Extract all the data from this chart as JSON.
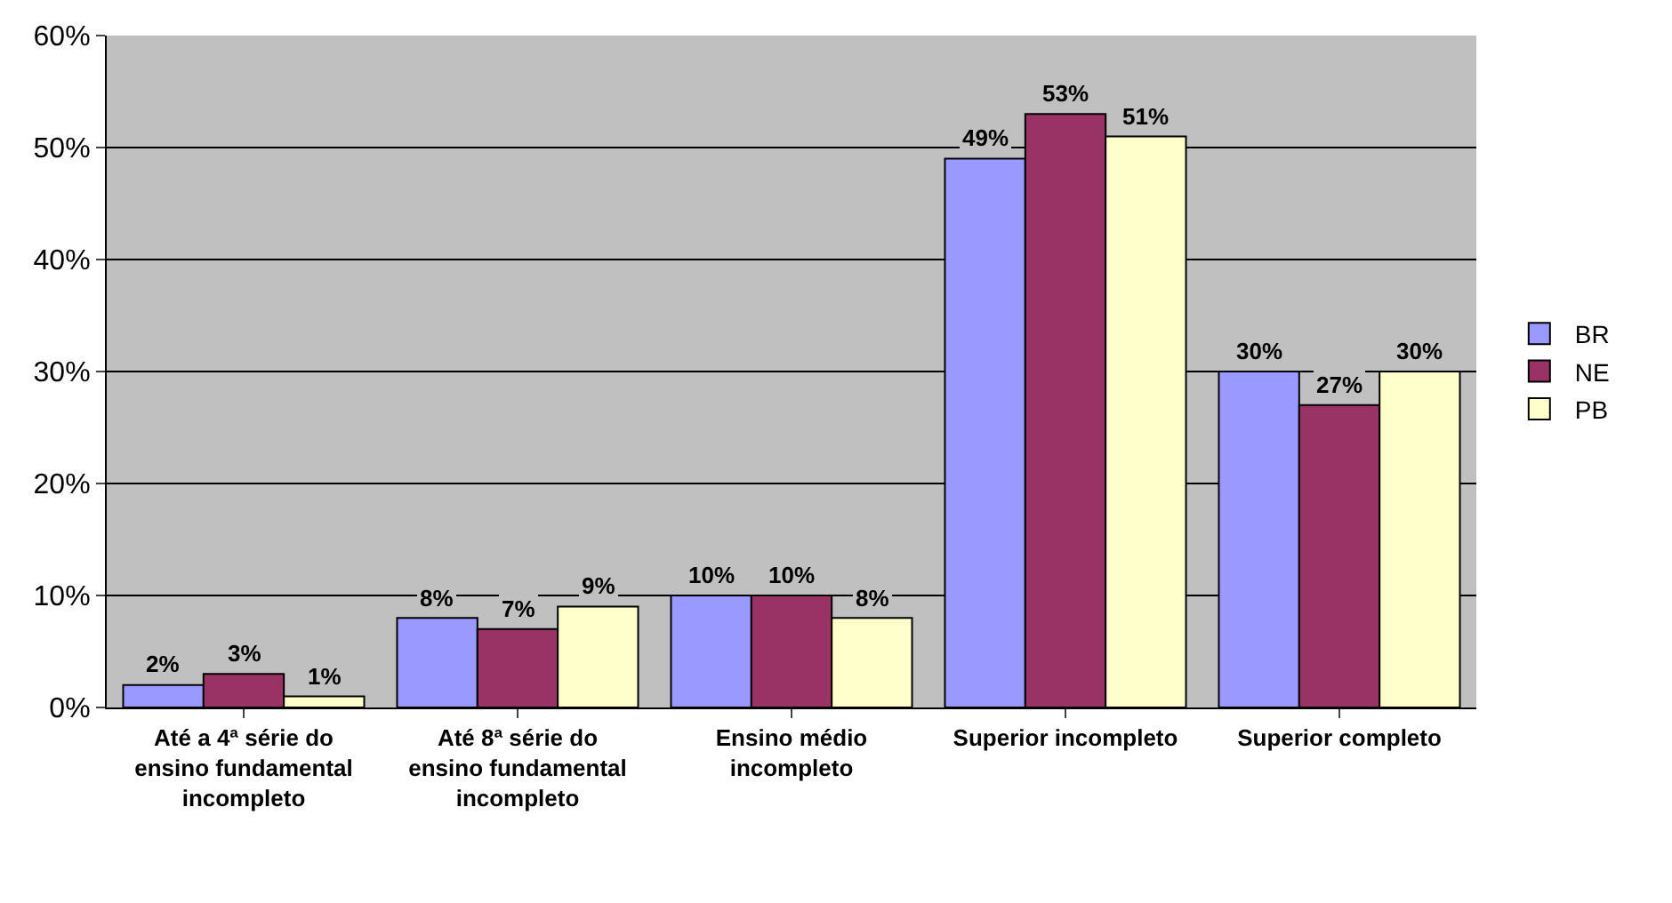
{
  "chart_data": {
    "type": "bar",
    "categories": [
      "Até a 4ª série do ensino fundamental incompleto",
      "Até 8ª série do ensino fundamental incompleto",
      "Ensino médio incompleto",
      "Superior incompleto",
      "Superior completo"
    ],
    "series": [
      {
        "name": "BR",
        "color": "#9999ff",
        "values": [
          2,
          8,
          10,
          49,
          30
        ],
        "value_labels": [
          "2%",
          "8%",
          "10%",
          "49%",
          "30%"
        ]
      },
      {
        "name": "NE",
        "color": "#993366",
        "values": [
          3,
          7,
          10,
          53,
          27
        ],
        "value_labels": [
          "3%",
          "7%",
          "10%",
          "53%",
          "27%"
        ]
      },
      {
        "name": "PB",
        "color": "#ffffcc",
        "values": [
          1,
          9,
          8,
          51,
          30
        ],
        "value_labels": [
          "1%",
          "9%",
          "8%",
          "51%",
          "30%"
        ]
      }
    ],
    "ylim": [
      0,
      60
    ],
    "yticks": [
      {
        "value": 0,
        "label": "0%"
      },
      {
        "value": 10,
        "label": "10%"
      },
      {
        "value": 20,
        "label": "20%"
      },
      {
        "value": 30,
        "label": "30%"
      },
      {
        "value": 40,
        "label": "40%"
      },
      {
        "value": 50,
        "label": "50%"
      },
      {
        "value": 60,
        "label": "60%"
      }
    ],
    "grid": "y",
    "legend": "right"
  }
}
